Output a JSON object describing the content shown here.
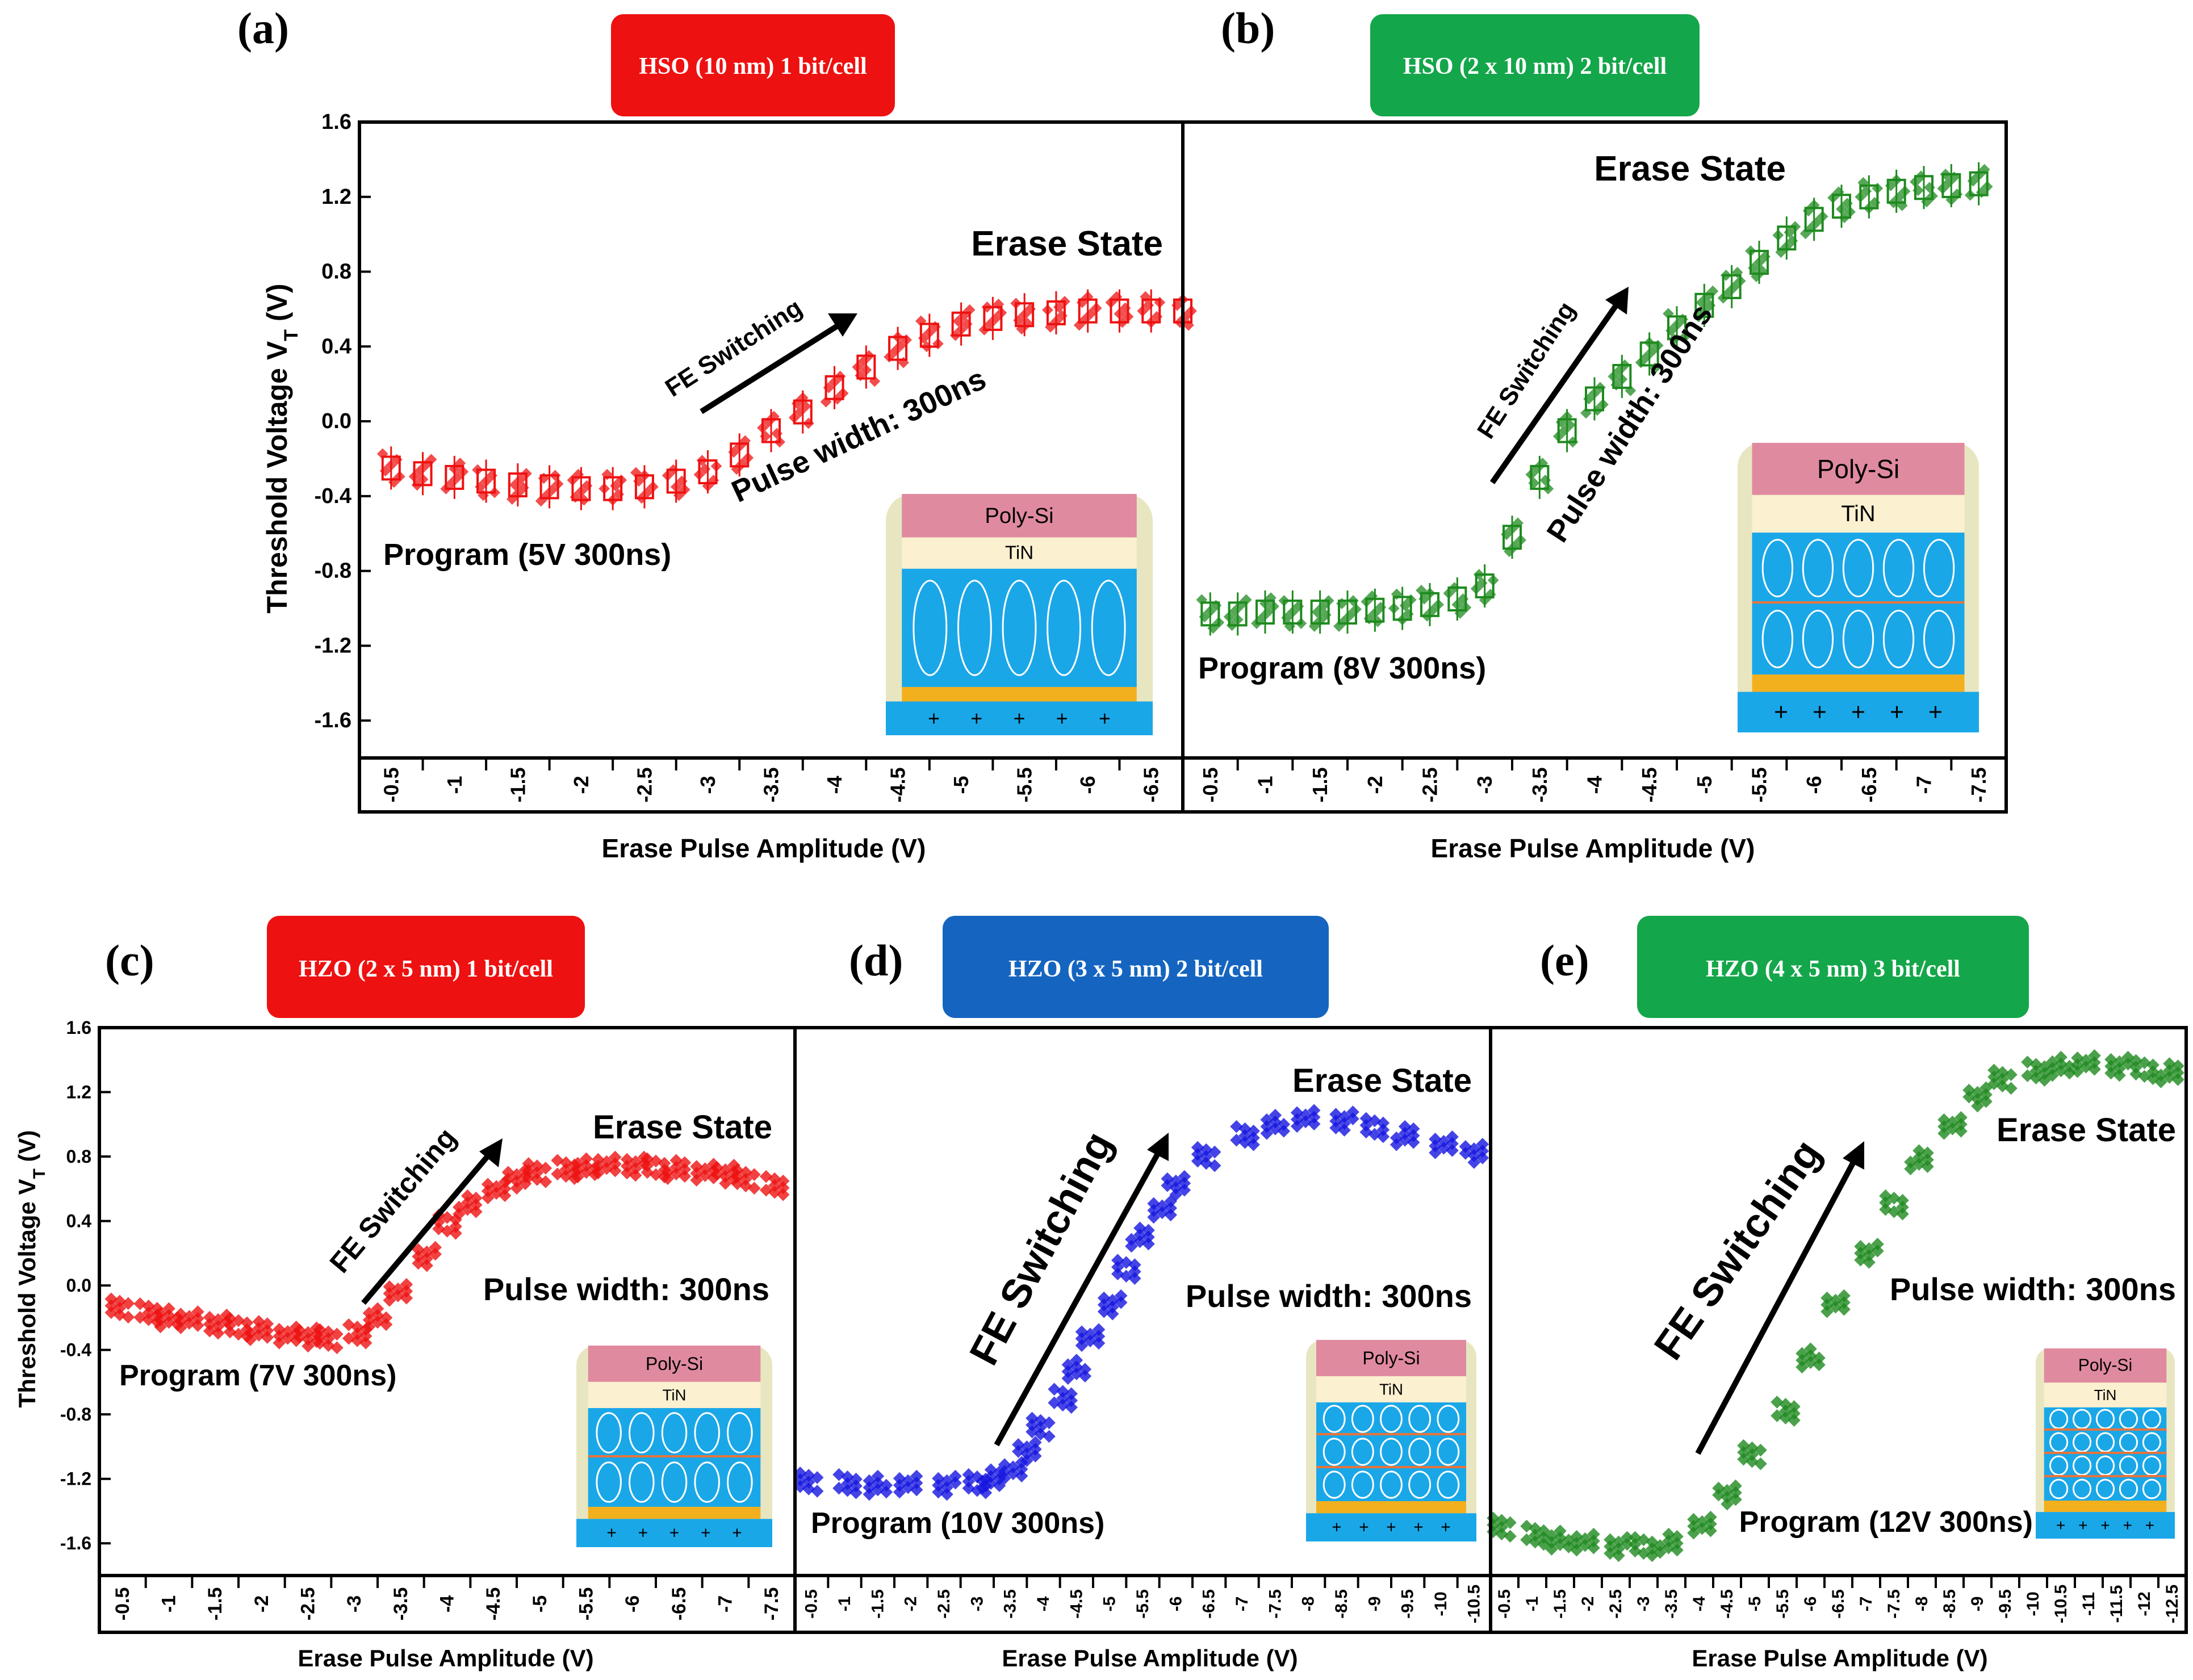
{
  "chart_data": [
    {
      "id": "a",
      "panel_label": "(a)",
      "type": "scatter",
      "badge": {
        "text": "HSO (10 nm) 1 bit/cell",
        "color": "#ee1111"
      },
      "series_color": "#ee1111",
      "ylabel": "Threshold Voltage V",
      "ylabel_sub": "T",
      "ylabel_tail": " (V)",
      "xlabel": "Erase Pulse Amplitude (V)",
      "ylim": [
        -1.8,
        1.6
      ],
      "yticks": [
        "1.6",
        "1.2",
        "0.8",
        "0.4",
        "0.0",
        "-0.4",
        "-0.8",
        "-1.2",
        "-1.6"
      ],
      "xticks": [
        "-0.5",
        "-1",
        "-1.5",
        "-2",
        "-2.5",
        "-3",
        "-3.5",
        "-4",
        "-4.5",
        "-5",
        "-5.5",
        "-6",
        "-6.5"
      ],
      "x": [
        -0.5,
        -0.75,
        -1,
        -1.25,
        -1.5,
        -1.75,
        -2,
        -2.25,
        -2.5,
        -2.75,
        -3,
        -3.25,
        -3.5,
        -3.75,
        -4,
        -4.25,
        -4.5,
        -4.75,
        -5,
        -5.25,
        -5.5,
        -5.75,
        -6,
        -6.25,
        -6.5,
        -6.75
      ],
      "y": [
        -0.25,
        -0.28,
        -0.3,
        -0.32,
        -0.34,
        -0.35,
        -0.36,
        -0.36,
        -0.35,
        -0.32,
        -0.27,
        -0.18,
        -0.05,
        0.05,
        0.18,
        0.29,
        0.39,
        0.46,
        0.52,
        0.55,
        0.57,
        0.58,
        0.59,
        0.59,
        0.59,
        0.59
      ],
      "annotations": {
        "erase": "Erase State",
        "fe": "FE Switching",
        "pulse": "Pulse width: 300ns",
        "program": "Program (5V 300ns)"
      },
      "inset": {
        "layers": [
          "Poly-Si",
          "TiN"
        ],
        "fe_layers": 1
      }
    },
    {
      "id": "b",
      "panel_label": "(b)",
      "type": "scatter",
      "badge": {
        "text": "HSO (2 x 10 nm) 2 bit/cell",
        "color": "#14a64a"
      },
      "series_color": "#1e8a1e",
      "xlabel": "Erase Pulse Amplitude (V)",
      "ylim": [
        -1.8,
        1.6
      ],
      "xticks": [
        "-0.5",
        "-1",
        "-1.5",
        "-2",
        "-2.5",
        "-3",
        "-3.5",
        "-4",
        "-4.5",
        "-5",
        "-5.5",
        "-6",
        "-6.5",
        "-7",
        "-7.5"
      ],
      "x": [
        -0.5,
        -0.75,
        -1,
        -1.25,
        -1.5,
        -1.75,
        -2,
        -2.25,
        -2.5,
        -2.75,
        -3,
        -3.25,
        -3.5,
        -3.75,
        -4,
        -4.25,
        -4.5,
        -4.75,
        -5,
        -5.25,
        -5.5,
        -5.75,
        -6,
        -6.25,
        -6.5,
        -6.75,
        -7,
        -7.25,
        -7.5
      ],
      "y": [
        -1.03,
        -1.03,
        -1.02,
        -1.02,
        -1.02,
        -1.02,
        -1.01,
        -1.0,
        -0.98,
        -0.95,
        -0.88,
        -0.62,
        -0.3,
        -0.05,
        0.12,
        0.24,
        0.36,
        0.5,
        0.62,
        0.72,
        0.85,
        0.98,
        1.08,
        1.15,
        1.2,
        1.23,
        1.25,
        1.26,
        1.27
      ],
      "annotations": {
        "erase": "Erase State",
        "fe": "FE Switching",
        "pulse": "Pulse width: 300ns",
        "program": "Program (8V 300ns)"
      },
      "inset": {
        "layers": [
          "Poly-Si",
          "TiN"
        ],
        "fe_layers": 2
      }
    },
    {
      "id": "c",
      "panel_label": "(c)",
      "type": "scatter",
      "badge": {
        "text": "HZO (2 x 5 nm) 1 bit/cell",
        "color": "#ee1111"
      },
      "series_color": "#ee1111",
      "ylabel": "Threshold Voltage V",
      "ylabel_sub": "T",
      "ylabel_tail": " (V)",
      "xlabel": "Erase Pulse Amplitude (V)",
      "ylim": [
        -1.8,
        1.6
      ],
      "yticks": [
        "1.6",
        "1.2",
        "0.8",
        "0.4",
        "0.0",
        "-0.4",
        "-0.8",
        "-1.2",
        "-1.6"
      ],
      "xticks": [
        "-0.5",
        "-1",
        "-1.5",
        "-2",
        "-2.5",
        "-3",
        "-3.5",
        "-4",
        "-4.5",
        "-5",
        "-5.5",
        "-6",
        "-6.5",
        "-7",
        "-7.5"
      ],
      "x": [
        -0.5,
        -0.75,
        -1,
        -1.25,
        -1.5,
        -1.75,
        -2,
        -2.25,
        -2.5,
        -2.75,
        -3,
        -3.25,
        -3.5,
        -3.75,
        -4,
        -4.25,
        -4.5,
        -4.75,
        -5,
        -5.25,
        -5.5,
        -5.75,
        -6,
        -6.25,
        -6.5,
        -6.75,
        -7,
        -7.25,
        -7.5
      ],
      "y": [
        -0.14,
        -0.17,
        -0.2,
        -0.22,
        -0.24,
        -0.26,
        -0.28,
        -0.3,
        -0.32,
        -0.33,
        -0.3,
        -0.2,
        -0.05,
        0.18,
        0.38,
        0.5,
        0.6,
        0.66,
        0.7,
        0.72,
        0.73,
        0.74,
        0.74,
        0.73,
        0.72,
        0.71,
        0.69,
        0.66,
        0.62
      ],
      "annotations": {
        "erase": "Erase State",
        "fe": "FE Switching",
        "pulse": "Pulse width: 300ns",
        "program": "Program (7V 300ns)"
      },
      "inset": {
        "layers": [
          "Poly-Si",
          "TiN"
        ],
        "fe_layers": 2
      }
    },
    {
      "id": "d",
      "panel_label": "(d)",
      "type": "scatter",
      "badge": {
        "text": "HZO (3 x 5 nm) 2 bit/cell",
        "color": "#1565c0"
      },
      "series_color": "#1515e0",
      "xlabel": "Erase Pulse Amplitude (V)",
      "ylim": [
        -1.8,
        1.6
      ],
      "xticks": [
        "-0.5",
        "-1",
        "-1.5",
        "-2",
        "-2.5",
        "-3",
        "-3.5",
        "-4",
        "-4.5",
        "-5",
        "-5.5",
        "-6",
        "-6.5",
        "-7",
        "-7.5",
        "-8",
        "-8.5",
        "-9",
        "-9.5",
        "-10",
        "-10.5"
      ],
      "x": [
        -0.5,
        -1,
        -1.5,
        -2,
        -2.5,
        -3,
        -3.25,
        -3.5,
        -3.75,
        -4,
        -4.25,
        -4.5,
        -4.75,
        -5,
        -5.25,
        -5.5,
        -5.75,
        -6,
        -6.5,
        -7,
        -7.5,
        -8,
        -8.5,
        -9,
        -9.5,
        -10,
        -10.5
      ],
      "y": [
        -1.22,
        -1.23,
        -1.24,
        -1.24,
        -1.24,
        -1.23,
        -1.2,
        -1.14,
        -1.03,
        -0.88,
        -0.7,
        -0.52,
        -0.33,
        -0.12,
        0.1,
        0.3,
        0.48,
        0.62,
        0.8,
        0.93,
        1.0,
        1.03,
        1.02,
        0.98,
        0.93,
        0.88,
        0.82
      ],
      "annotations": {
        "erase": "Erase State",
        "fe": "FE Switching",
        "pulse": "Pulse width: 300ns",
        "program": "Program (10V 300ns)"
      },
      "inset": {
        "layers": [
          "Poly-Si",
          "TiN"
        ],
        "fe_layers": 3
      }
    },
    {
      "id": "e",
      "panel_label": "(e)",
      "type": "scatter",
      "badge": {
        "text": "HZO (4 x 5 nm) 3 bit/cell",
        "color": "#14a64a"
      },
      "series_color": "#1e8a1e",
      "xlabel": "Erase Pulse Amplitude (V)",
      "ylim": [
        -1.8,
        1.6
      ],
      "xticks": [
        "-0.5",
        "-1",
        "-1.5",
        "-2",
        "-2.5",
        "-3",
        "-3.5",
        "-4",
        "-4.5",
        "-5",
        "-5.5",
        "-6",
        "-6.5",
        "-7",
        "-7.5",
        "-8",
        "-8.5",
        "-9",
        "-9.5",
        "-10",
        "-10.5",
        "-11",
        "-11.5",
        "-12",
        "-12.5"
      ],
      "x": [
        -0.5,
        -1,
        -1.5,
        -2,
        -2.5,
        -3,
        -3.5,
        -4,
        -4.5,
        -5,
        -5.5,
        -6,
        -6.5,
        -7,
        -7.5,
        -8,
        -8.5,
        -9,
        -9.5,
        -10,
        -10.5,
        -11,
        -11.5,
        -12,
        -12.5
      ],
      "y": [
        -1.5,
        -1.55,
        -1.58,
        -1.6,
        -1.62,
        -1.62,
        -1.6,
        -1.48,
        -1.3,
        -1.05,
        -0.78,
        -0.45,
        -0.12,
        0.2,
        0.5,
        0.78,
        1.0,
        1.17,
        1.28,
        1.33,
        1.36,
        1.37,
        1.36,
        1.34,
        1.32
      ],
      "annotations": {
        "erase": "Erase State",
        "fe": "FE Switching",
        "pulse": "Pulse width: 300ns",
        "program": "Program (12V 300ns)"
      },
      "inset": {
        "layers": [
          "Poly-Si",
          "TiN"
        ],
        "fe_layers": 4
      }
    }
  ]
}
